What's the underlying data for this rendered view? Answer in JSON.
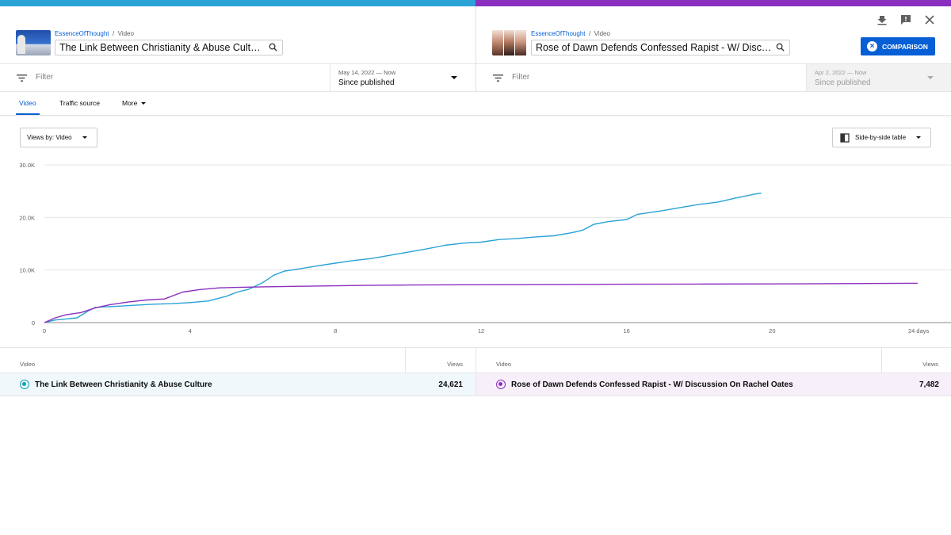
{
  "left": {
    "channel": "EssenceOfThought",
    "crumb_sep": "/",
    "crumb_type": "Video",
    "title": "The Link Between Christianity & Abuse Culture",
    "filter_placeholder": "Filter",
    "date_range": "May 14, 2022 — Now",
    "date_label": "Since published"
  },
  "right": {
    "channel": "EssenceOfThought",
    "crumb_sep": "/",
    "crumb_type": "Video",
    "title": "Rose of Dawn Defends Confessed Rapist - W/ Discu…",
    "filter_placeholder": "Filter",
    "date_range": "Apr 2, 2022 — Now",
    "date_label": "Since published"
  },
  "toolbar": {
    "comparison_label": "COMPARISON",
    "icons": [
      "download-icon",
      "feedback-icon",
      "close-icon"
    ]
  },
  "tabs": [
    {
      "label": "Video",
      "active": true
    },
    {
      "label": "Traffic source",
      "active": false
    },
    {
      "label": "More",
      "active": false
    }
  ],
  "controls": {
    "views_by": "Views by: Video",
    "table_mode": "Side-by-side table"
  },
  "colors": {
    "series_1": "#2aa2d6",
    "series_2": "#8b2fbf",
    "accent": "#065fd4"
  },
  "chart_data": {
    "type": "line",
    "xlabel": "24 days",
    "ylabel": "",
    "x_ticks": [
      "0",
      "4",
      "8",
      "12",
      "16",
      "20",
      "24 days"
    ],
    "y_ticks": [
      "0",
      "10.0K",
      "20.0K",
      "30.0K"
    ],
    "xlim": [
      0,
      24
    ],
    "ylim": [
      0,
      30000
    ],
    "grid": true,
    "series": [
      {
        "name": "The Link Between Christianity & Abuse Culture",
        "color": "#2aa2d6",
        "x": [
          0,
          0.3,
          0.6,
          0.9,
          1.2,
          1.4,
          1.7,
          2,
          2.5,
          3,
          3.5,
          4,
          4.5,
          5,
          5.3,
          5.6,
          6,
          6.3,
          6.6,
          7,
          7.5,
          8,
          8.5,
          9,
          9.5,
          10,
          10.5,
          11,
          11.5,
          12,
          12.5,
          13,
          13.5,
          14,
          14.5,
          14.8,
          15.1,
          15.5,
          16,
          16.3,
          16.6,
          17,
          17.5,
          18,
          18.5,
          19,
          19.3,
          19.5,
          19.7
        ],
        "y": [
          0,
          500,
          700,
          900,
          2200,
          2900,
          3000,
          3100,
          3300,
          3500,
          3600,
          3800,
          4100,
          5000,
          5800,
          6300,
          7600,
          9000,
          9800,
          10200,
          10800,
          11300,
          11800,
          12200,
          12800,
          13400,
          14000,
          14700,
          15100,
          15300,
          15800,
          16000,
          16300,
          16500,
          17100,
          17600,
          18700,
          19200,
          19600,
          20600,
          20900,
          21300,
          21900,
          22500,
          22900,
          23700,
          24100,
          24400,
          24621
        ]
      },
      {
        "name": "Rose of Dawn Defends Confessed Rapist - W/ Discussion On Rachel Oates",
        "color": "#8b2fbf",
        "x": [
          0,
          0.3,
          0.6,
          1,
          1.4,
          1.8,
          2.3,
          2.8,
          3.3,
          3.8,
          4.3,
          4.8,
          5.3,
          6,
          7,
          8,
          9,
          10,
          12,
          14,
          16,
          18,
          20,
          22,
          24
        ],
        "y": [
          0,
          900,
          1500,
          1900,
          2800,
          3400,
          3900,
          4300,
          4500,
          5800,
          6300,
          6600,
          6700,
          6800,
          6900,
          7000,
          7100,
          7150,
          7200,
          7250,
          7300,
          7330,
          7360,
          7420,
          7482
        ]
      }
    ]
  },
  "table": {
    "left": {
      "col_video": "Video",
      "col_views": "Views",
      "row_title": "The Link Between Christianity & Abuse Culture",
      "row_views": "24,621"
    },
    "right": {
      "col_video": "Video",
      "col_views": "Views",
      "row_title": "Rose of Dawn Defends Confessed Rapist - W/ Discussion On Rachel Oates",
      "row_views": "7,482"
    }
  }
}
